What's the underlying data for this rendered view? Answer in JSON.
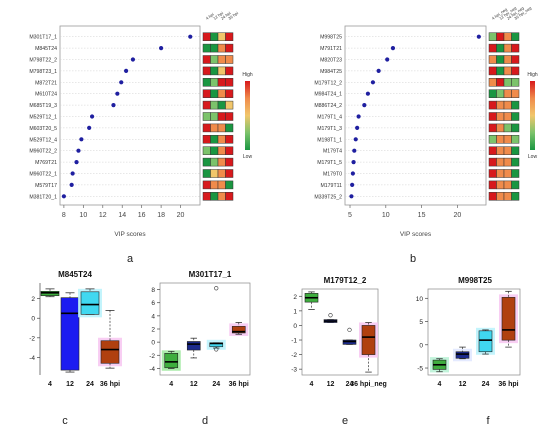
{
  "panel_letters": [
    "a",
    "b",
    "c",
    "d",
    "e",
    "f"
  ],
  "colors": {
    "point": "#1f1fa0",
    "heat": [
      "#1a9641",
      "#7cc36b",
      "#f1c66b",
      "#f08b4b",
      "#d7191c"
    ],
    "box_c": [
      "#3fae3f",
      "#1c1cf0",
      "#40d8f0",
      "#b04010"
    ],
    "box_f": [
      "#3fae3f",
      "#1c2a8c",
      "#40d8f0",
      "#b04010"
    ],
    "shadow_c": [
      "none",
      "none",
      "#b8f2fb",
      "#f7c6f1"
    ]
  },
  "chart_data": [
    {
      "type": "scatter",
      "panel": "a",
      "xlabel": "VIP scores",
      "xlim": [
        7.6,
        22
      ],
      "xticks": [
        8,
        10,
        12,
        14,
        16,
        18,
        20
      ],
      "labels": [
        "M301T17_1",
        "M845T24",
        "M798T22_2",
        "M798T23_1",
        "M872T21",
        "M610T24",
        "M685T19_3",
        "M529T12_1",
        "M603T20_5",
        "M529T12_4",
        "M960T22_2",
        "M769T21",
        "M960T22_1",
        "M579T17",
        "M381T20_1"
      ],
      "values": [
        21.0,
        18.0,
        15.1,
        14.4,
        13.9,
        13.5,
        13.1,
        10.9,
        10.6,
        9.8,
        9.5,
        9.3,
        8.9,
        8.8,
        8.0
      ],
      "heatmap_columns": [
        "4 hpi",
        "12 hpi",
        "24 hpi",
        "36 hpi"
      ],
      "heatmap": [
        [
          4,
          0,
          2,
          4
        ],
        [
          0,
          0,
          3,
          4
        ],
        [
          4,
          1,
          3,
          3
        ],
        [
          4,
          0,
          2,
          4
        ],
        [
          0,
          1,
          4,
          4
        ],
        [
          4,
          0,
          3,
          4
        ],
        [
          4,
          1,
          0,
          2
        ],
        [
          1,
          1,
          4,
          4
        ],
        [
          4,
          3,
          3,
          0
        ],
        [
          4,
          0,
          3,
          4
        ],
        [
          1,
          0,
          3,
          4
        ],
        [
          0,
          1,
          3,
          4
        ],
        [
          0,
          2,
          3,
          4
        ],
        [
          4,
          3,
          3,
          0
        ],
        [
          4,
          0,
          3,
          4
        ]
      ],
      "legend": {
        "high": "High",
        "low": "Low"
      }
    },
    {
      "type": "scatter",
      "panel": "b",
      "xlabel": "VIP scores",
      "xlim": [
        4.3,
        24
      ],
      "xticks": [
        5,
        10,
        15,
        20
      ],
      "labels": [
        "M998T25",
        "M791T21",
        "M820T23",
        "M984T25",
        "M179T12_2",
        "M984T24_1",
        "M886T24_2",
        "M179T1_4",
        "M179T1_3",
        "M198T1_1",
        "M179T4",
        "M179T1_5",
        "M179T0",
        "M179T11",
        "M339T25_2"
      ],
      "values": [
        23.0,
        11.0,
        10.2,
        9.0,
        8.2,
        7.5,
        7.0,
        6.2,
        6.0,
        5.8,
        5.6,
        5.5,
        5.4,
        5.3,
        5.2
      ],
      "heatmap_columns": [
        "4 hpi_neg",
        "12 hpi_neg",
        "24 hpi_neg",
        "36 hpi_neg"
      ],
      "heatmap": [
        [
          1,
          4,
          3,
          0
        ],
        [
          4,
          0,
          3,
          4
        ],
        [
          3,
          0,
          3,
          4
        ],
        [
          4,
          0,
          3,
          4
        ],
        [
          3,
          4,
          1,
          1
        ],
        [
          0,
          1,
          3,
          3
        ],
        [
          4,
          3,
          3,
          0
        ],
        [
          4,
          3,
          3,
          0
        ],
        [
          4,
          3,
          1,
          0
        ],
        [
          1,
          3,
          3,
          1
        ],
        [
          4,
          3,
          3,
          0
        ],
        [
          4,
          3,
          3,
          0
        ],
        [
          4,
          3,
          3,
          0
        ],
        [
          4,
          3,
          3,
          0
        ],
        [
          4,
          3,
          3,
          0
        ]
      ],
      "legend": {
        "high": "High",
        "low": "Low"
      }
    },
    {
      "type": "box",
      "panel": "c",
      "title": "M845T24",
      "categories": [
        "4",
        "12",
        "24",
        "36 hpi"
      ],
      "ylim": [
        -5.8,
        3.6
      ],
      "yticks": [
        -4,
        -2,
        0,
        2
      ],
      "boxes": [
        {
          "min": 2.2,
          "q1": 2.3,
          "median": 2.6,
          "q3": 2.75,
          "max": 3.0
        },
        {
          "min": -5.5,
          "q1": -5.3,
          "median": 0.5,
          "q3": 2.1,
          "max": 2.6
        },
        {
          "min": 0.4,
          "q1": 0.4,
          "median": 1.4,
          "q3": 2.7,
          "max": 3.0
        },
        {
          "min": -5.1,
          "q1": -4.6,
          "median": -3.2,
          "q3": -2.3,
          "max": 0.8
        }
      ],
      "outliers": []
    },
    {
      "type": "box",
      "panel": "d",
      "title": "M301T17_1",
      "categories": [
        "4",
        "12",
        "24",
        "36 hpi"
      ],
      "ylim": [
        -5,
        9
      ],
      "yticks": [
        -4,
        -2,
        0,
        2,
        4,
        6,
        8
      ],
      "boxes": [
        {
          "min": -4.0,
          "q1": -3.9,
          "median": -3.0,
          "q3": -1.7,
          "max": -1.4
        },
        {
          "min": -2.4,
          "q1": -1.2,
          "median": -0.3,
          "q3": 0.1,
          "max": 0.6
        },
        {
          "min": -0.9,
          "q1": -0.7,
          "median": -0.2,
          "q3": -0.1,
          "max": -0.1
        },
        {
          "min": 1.2,
          "q1": 1.4,
          "median": 1.6,
          "q3": 2.4,
          "max": 3.0
        }
      ],
      "outliers": [
        {
          "category": 2,
          "value": 8.2
        },
        {
          "category": 2,
          "value": -1.1
        }
      ]
    },
    {
      "type": "box",
      "panel": "e",
      "title": "M179T12_2",
      "categories": [
        "4",
        "12",
        "24",
        "36 hpi_neg"
      ],
      "ylim": [
        -3.4,
        2.5
      ],
      "yticks": [
        -3,
        -2,
        -1,
        0,
        1,
        2
      ],
      "boxes": [
        {
          "min": 1.1,
          "q1": 1.6,
          "median": 1.9,
          "q3": 2.2,
          "max": 2.3
        },
        {
          "min": 0.2,
          "q1": 0.2,
          "median": 0.3,
          "q3": 0.4,
          "max": 0.4
        },
        {
          "min": -1.3,
          "q1": -1.3,
          "median": -1.1,
          "q3": -1.0,
          "max": -1.0
        },
        {
          "min": -3.2,
          "q1": -2.0,
          "median": -0.8,
          "q3": 0.0,
          "max": 0.2
        }
      ],
      "outliers": [
        {
          "category": 1,
          "value": 0.7
        },
        {
          "category": 2,
          "value": -0.3
        }
      ]
    },
    {
      "type": "box",
      "panel": "f",
      "title": "M998T25",
      "categories": [
        "4",
        "12",
        "24",
        "36 hpi"
      ],
      "ylim": [
        -6.5,
        12
      ],
      "yticks": [
        -5,
        0,
        5,
        10
      ],
      "boxes": [
        {
          "min": -5.8,
          "q1": -5.3,
          "median": -4.3,
          "q3": -3.3,
          "max": -3.0
        },
        {
          "min": -3.0,
          "q1": -2.9,
          "median": -2.0,
          "q3": -1.5,
          "max": -0.5
        },
        {
          "min": -2.0,
          "q1": -1.5,
          "median": 1.0,
          "q3": 3.0,
          "max": 3.2
        },
        {
          "min": -0.5,
          "q1": 1.0,
          "median": 3.2,
          "q3": 10.2,
          "max": 11.5
        }
      ],
      "outliers": []
    }
  ]
}
